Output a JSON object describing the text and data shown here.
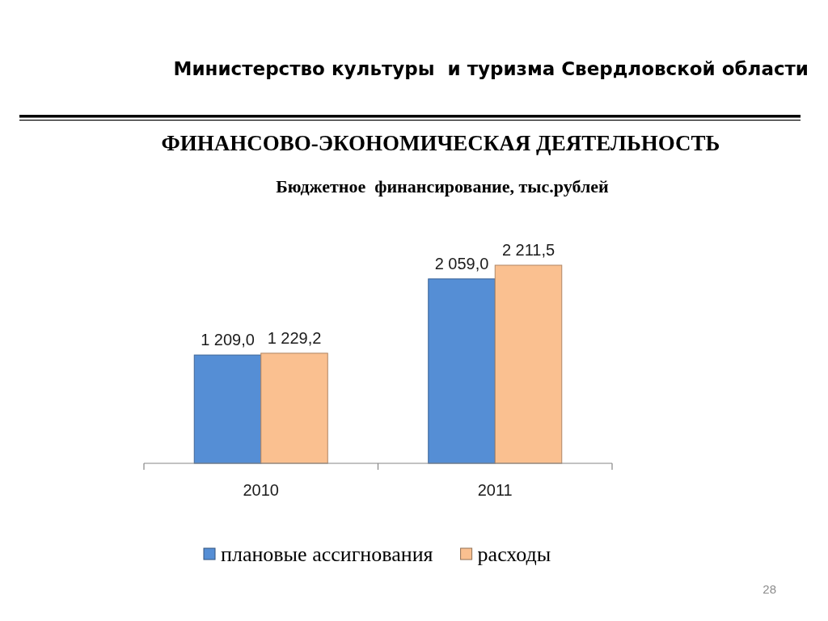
{
  "chart_data": {
    "type": "bar",
    "title": "ФИНАНСОВО-ЭКОНОМИЧЕСКАЯ ДЕЯТЕЛЬНОСТЬ",
    "subtitle": "Бюджетное  финансирование, тыс.рублей",
    "annotations": [
      "Министерство культуры  и туризма Свердловской области",
      "28"
    ],
    "categories": [
      "2010",
      "2011"
    ],
    "series": [
      {
        "name": "плановые ассигнования",
        "color": "#558ed5",
        "values": [
          1209.0,
          2059.0
        ],
        "value_labels": [
          "1 209,0",
          "2 059,0"
        ]
      },
      {
        "name": "расходы",
        "color": "#fac090",
        "values": [
          1229.2,
          2211.5
        ],
        "value_labels": [
          "1 229,2",
          "2 211,5"
        ]
      }
    ],
    "legend": "bottom"
  }
}
